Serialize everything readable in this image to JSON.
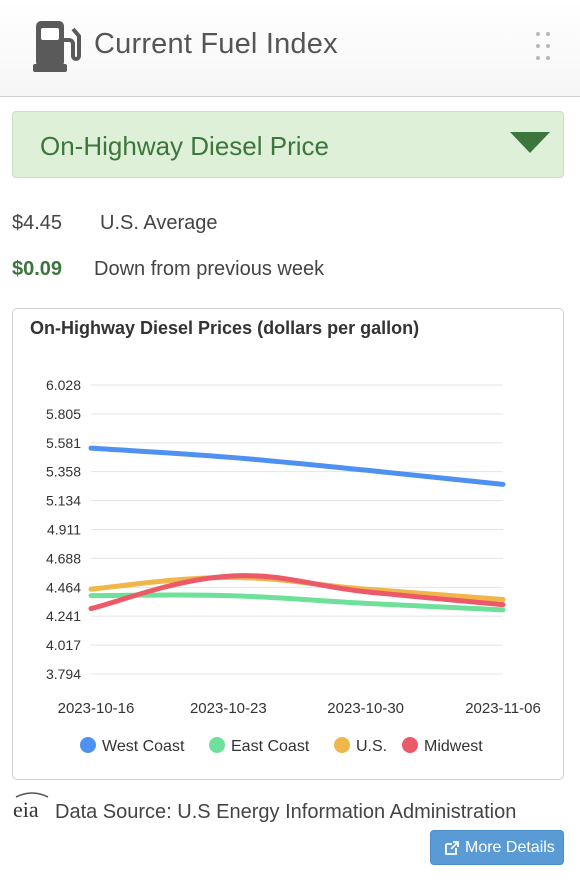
{
  "header": {
    "title": "Current Fuel Index",
    "icon": "fuel-pump-icon",
    "menu_icon": "drag-handle-icon"
  },
  "selector": {
    "selected": "On-Highway Diesel Price",
    "icon": "caret-down-icon"
  },
  "summary": {
    "average_value": "$4.45",
    "average_label": "U.S. Average",
    "change_value": "$0.09",
    "change_label": "Down from previous week",
    "change_color": "#3c763d"
  },
  "chart_data": {
    "type": "line",
    "title": "On-Highway Diesel Prices (dollars per gallon)",
    "x": [
      "2023-10-16",
      "2023-10-23",
      "2023-10-30",
      "2023-11-06"
    ],
    "y_ticks": [
      "6.028",
      "5.805",
      "5.581",
      "5.358",
      "5.134",
      "4.911",
      "4.688",
      "4.464",
      "4.241",
      "4.017",
      "3.794"
    ],
    "ylim": [
      3.794,
      6.028
    ],
    "grid": true,
    "legend_placement": "bottom",
    "series": [
      {
        "name": "West Coast",
        "color": "#4f91f0",
        "values": [
          5.54,
          5.47,
          5.37,
          5.26
        ]
      },
      {
        "name": "East Coast",
        "color": "#6ee09a",
        "values": [
          4.4,
          4.4,
          4.34,
          4.29
        ]
      },
      {
        "name": "U.S.",
        "color": "#f0b64a",
        "values": [
          4.45,
          4.54,
          4.45,
          4.37
        ]
      },
      {
        "name": "Midwest",
        "color": "#ec5a6a",
        "values": [
          4.3,
          4.55,
          4.43,
          4.33
        ]
      }
    ]
  },
  "footer": {
    "logo_text": "eia",
    "source": "Data Source: U.S Energy Information Administration",
    "button_label": "More Details",
    "button_icon": "external-link-icon"
  },
  "colors": {
    "accent": "#5b9bd5",
    "selector_bg": "#dff0d8",
    "selector_text": "#3c763d"
  }
}
